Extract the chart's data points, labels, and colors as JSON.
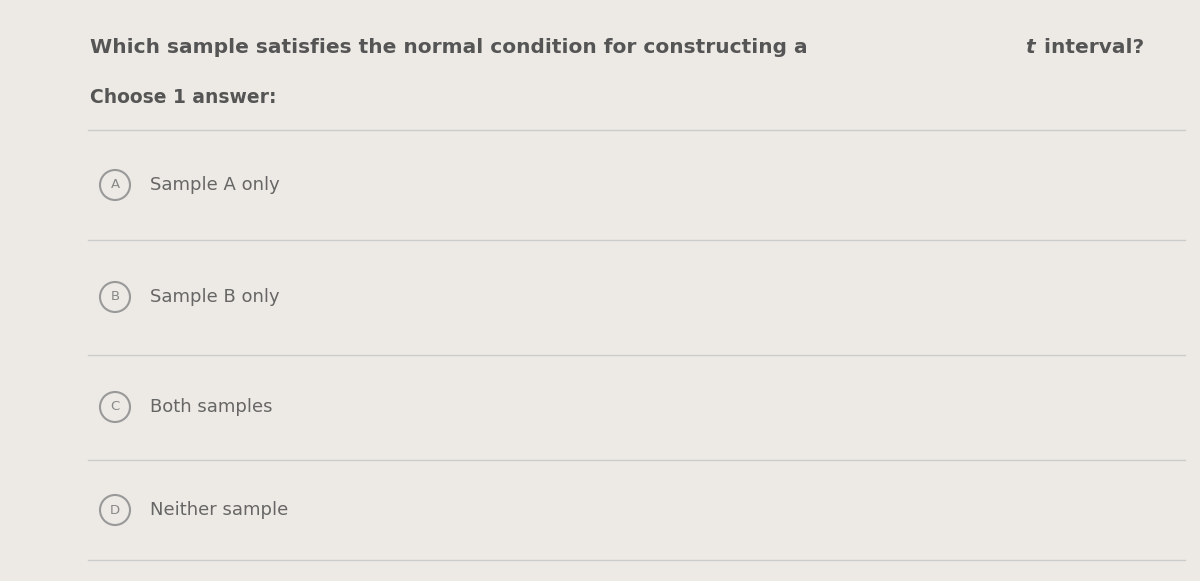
{
  "title_part1": "Which sample satisfies the normal condition for constructing a ",
  "title_t": "t",
  "title_part2": " interval?",
  "subtitle": "Choose 1 answer:",
  "options": [
    {
      "label": "A",
      "text": "Sample A only"
    },
    {
      "label": "B",
      "text": "Sample B only"
    },
    {
      "label": "C",
      "text": "Both samples"
    },
    {
      "label": "D",
      "text": "Neither sample"
    }
  ],
  "bg_color": "#edeae5",
  "text_color": "#666666",
  "title_color": "#555555",
  "circle_edge_color": "#999999",
  "circle_face_color": "#edeae5",
  "circle_label_color": "#888888",
  "line_color": "#cccccc",
  "title_fontsize": 14.5,
  "subtitle_fontsize": 13.5,
  "option_fontsize": 13,
  "label_fontsize": 9.5,
  "fig_width": 12.0,
  "fig_height": 5.81
}
